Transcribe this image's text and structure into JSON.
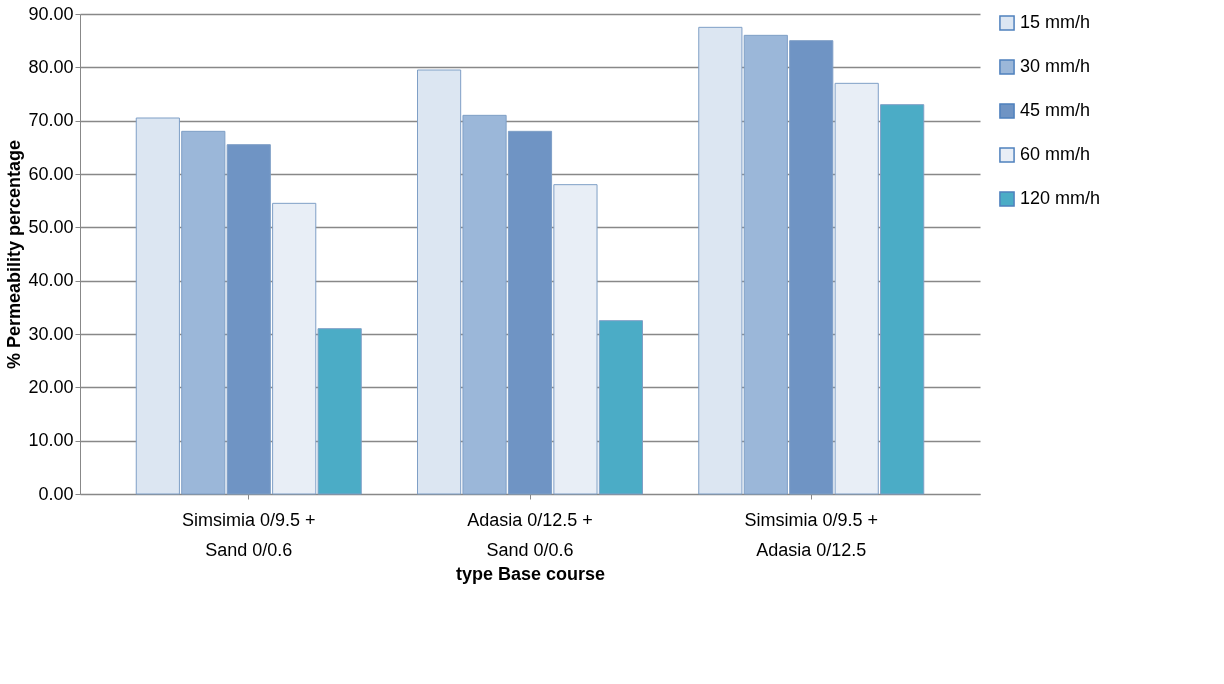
{
  "chart_data": {
    "type": "bar",
    "xlabel": "type Base course",
    "ylabel": "% Permeability percentage",
    "categories": [
      "Simsimia 0/9.5 +\nSand  0/0.6",
      "Adasia  0/12.5 +\nSand  0/0.6",
      "Simsimia 0/9.5 +\nAdasia  0/12.5"
    ],
    "series": [
      {
        "name": "15 mm/h",
        "color": "#dce6f2",
        "values": [
          70.5,
          79.5,
          87.5
        ]
      },
      {
        "name": "30 mm/h",
        "color": "#9bb7d9",
        "values": [
          68,
          71,
          86
        ]
      },
      {
        "name": "45 mm/h",
        "color": "#6f94c4",
        "values": [
          65.5,
          68,
          85
        ]
      },
      {
        "name": "60 mm/h",
        "color": "#e8eef6",
        "values": [
          54.5,
          58,
          77
        ]
      },
      {
        "name": "120 mm/h",
        "color": "#4bacc6",
        "values": [
          31,
          32.5,
          73
        ]
      }
    ],
    "ylim": [
      0,
      90
    ],
    "yticks": [
      {
        "value": 0,
        "label": "0.00"
      },
      {
        "value": 10,
        "label": "10.00"
      },
      {
        "value": 20,
        "label": "20.00"
      },
      {
        "value": 30,
        "label": "30.00"
      },
      {
        "value": 40,
        "label": "40.00"
      },
      {
        "value": 50,
        "label": "50.00"
      },
      {
        "value": 60,
        "label": "60.00"
      },
      {
        "value": 70,
        "label": "70.00"
      },
      {
        "value": 80,
        "label": "80.00"
      },
      {
        "value": 90,
        "label": "90.00"
      }
    ],
    "grid": "y",
    "legend": "right"
  }
}
